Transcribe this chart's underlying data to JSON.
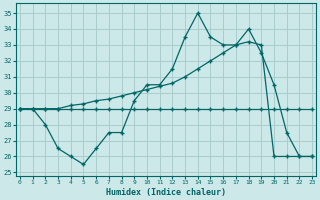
{
  "title": "",
  "xlabel": "Humidex (Indice chaleur)",
  "ylabel": "",
  "bg_color": "#cde8e8",
  "grid_color": "#aacccc",
  "line_color": "#006666",
  "x_ticks": [
    0,
    1,
    2,
    3,
    4,
    5,
    6,
    7,
    8,
    9,
    10,
    11,
    12,
    13,
    14,
    15,
    16,
    17,
    18,
    19,
    20,
    21,
    22,
    23
  ],
  "y_ticks": [
    25,
    26,
    27,
    28,
    29,
    30,
    31,
    32,
    33,
    34,
    35
  ],
  "ylim": [
    24.8,
    35.6
  ],
  "xlim": [
    -0.3,
    23.3
  ],
  "line1_x": [
    0,
    1,
    2,
    3,
    4,
    5,
    6,
    7,
    8,
    9,
    10,
    11,
    12,
    13,
    14,
    15,
    16,
    17,
    18,
    19,
    20,
    21,
    22,
    23
  ],
  "line1_y": [
    29,
    29,
    28,
    26.5,
    26,
    25.5,
    26.5,
    27.5,
    27.5,
    29.5,
    30.5,
    30.5,
    31.5,
    33.5,
    35,
    33.5,
    33,
    33,
    34,
    32.5,
    30.5,
    27.5,
    26,
    26
  ],
  "line2_x": [
    0,
    1,
    2,
    3,
    4,
    5,
    6,
    7,
    8,
    9,
    10,
    11,
    12,
    13,
    14,
    15,
    16,
    17,
    18,
    19,
    20,
    21,
    22,
    23
  ],
  "line2_y": [
    29,
    29,
    29,
    29,
    29.2,
    29.3,
    29.5,
    29.6,
    29.8,
    30,
    30.2,
    30.4,
    30.6,
    31,
    31.5,
    32,
    32.5,
    33,
    33.2,
    33,
    26,
    26,
    26,
    26
  ],
  "line3_x": [
    0,
    1,
    2,
    3,
    4,
    5,
    6,
    7,
    8,
    9,
    10,
    11,
    12,
    13,
    14,
    15,
    16,
    17,
    18,
    19,
    20,
    21,
    22,
    23
  ],
  "line3_y": [
    29,
    29,
    29,
    29,
    29,
    29,
    29,
    29,
    29,
    29,
    29,
    29,
    29,
    29,
    29,
    29,
    29,
    29,
    29,
    29,
    29,
    29,
    29,
    29
  ]
}
